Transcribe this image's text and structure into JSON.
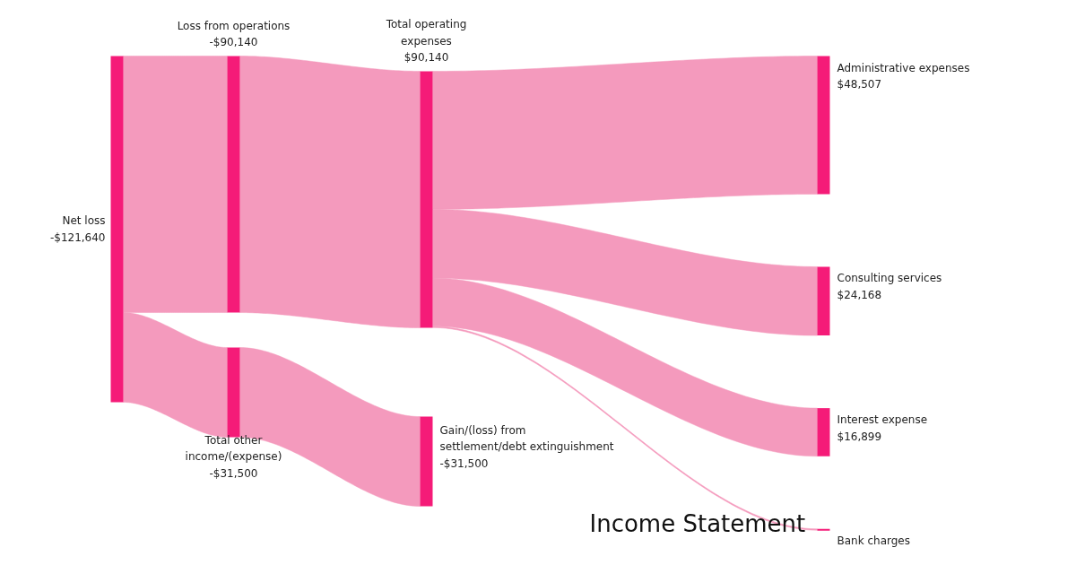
{
  "chart_data": {
    "type": "other",
    "title": "Income Statement",
    "categories": [
      "Net loss",
      "Loss from operations",
      "Total other income/(expense)",
      "Total operating expenses",
      "Gain/(loss) from settlement/debt extinguishment",
      "Administrative expenses",
      "Consulting services",
      "Interest expense",
      "Bank charges"
    ],
    "values": [
      -121640,
      -90140,
      -31500,
      90140,
      -31500,
      48507,
      24168,
      16899,
      null
    ],
    "value_labels": [
      "-$121,640",
      "-$90,140",
      "-$31,500",
      "$90,140",
      "-$31,500",
      "$48,507",
      "$24,168",
      "$16,899",
      null
    ],
    "color": "#f51b78",
    "colors": [
      null,
      "#f49abd",
      "#f49abd",
      "#f49abd",
      "#f49abd",
      "#f49abd",
      "#f49abd",
      "#f49abd",
      "#f49abd"
    ]
  }
}
